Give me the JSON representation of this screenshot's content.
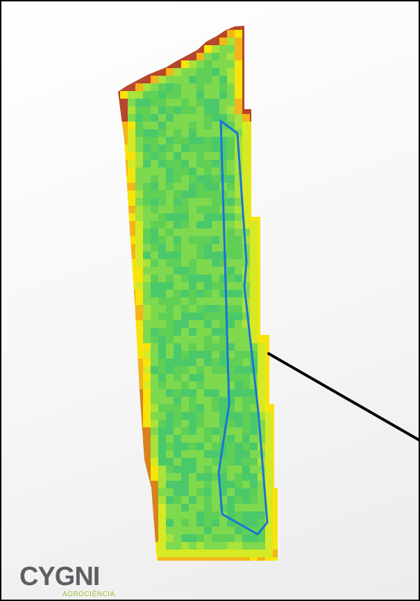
{
  "map": {
    "raster_palette": [
      "#b6472c",
      "#d8821f",
      "#f4b41a",
      "#f7e40b",
      "#d5ea25",
      "#a8e23a",
      "#7fd94f",
      "#5fcf56",
      "#4bc96a"
    ],
    "zone_outline_color": "#1a73d9",
    "leader_line_color": "#000000"
  },
  "logo": {
    "wordmark": "CYGNI",
    "subtitle": "AGROCIÊNCIA",
    "wordmark_color": "#5d5f63",
    "subtitle_color": "#9bbf3c"
  }
}
